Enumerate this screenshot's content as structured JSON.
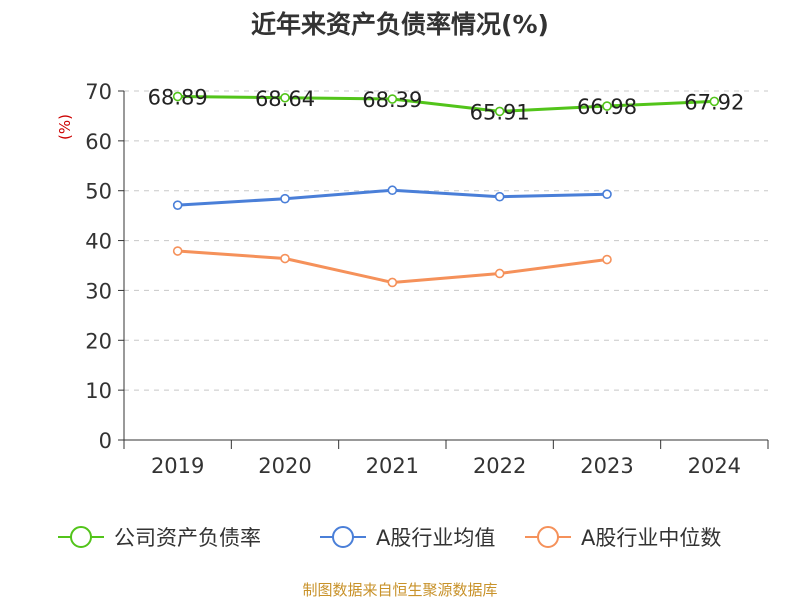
{
  "chart_data": {
    "type": "line",
    "title": "近年来资产负债率情况(%)",
    "ylabel": "(%)",
    "xlabel": "",
    "ylim": [
      0,
      70
    ],
    "yticks": [
      0,
      10,
      20,
      30,
      40,
      50,
      60,
      70
    ],
    "categories": [
      "2019",
      "2020",
      "2021",
      "2022",
      "2023",
      "2024"
    ],
    "grid": true,
    "grid_style": "dashed",
    "legend_position": "bottom",
    "series": [
      {
        "name": "公司资产负债率",
        "color": "#52c41a",
        "values": [
          68.89,
          68.64,
          68.39,
          65.91,
          66.98,
          67.92
        ],
        "labels": [
          "68.89",
          "68.64",
          "68.39",
          "65.91",
          "66.98",
          "67.92"
        ]
      },
      {
        "name": "A股行业均值",
        "color": "#4a7fd8",
        "values": [
          47.1,
          48.4,
          50.1,
          48.8,
          49.3,
          null
        ]
      },
      {
        "name": "A股行业中位数",
        "color": "#f5915a",
        "values": [
          37.9,
          36.4,
          31.6,
          33.4,
          36.2,
          null
        ]
      }
    ],
    "source": "制图数据来自恒生聚源数据库"
  }
}
